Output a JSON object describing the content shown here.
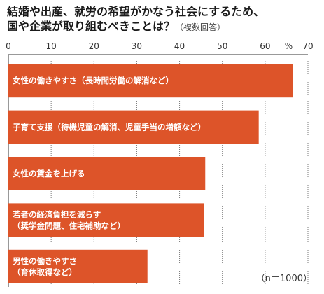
{
  "title_line1": "結婚や出産、就労の希望がかなう社会にするため、",
  "title_line2": "国や企業が取り組むべきことは？",
  "title_note": "（複数回答）",
  "unit": "%",
  "sample_note": "（n＝1000）",
  "chart_data": {
    "type": "bar",
    "orientation": "horizontal",
    "xlim": [
      0,
      70
    ],
    "ticks": [
      0,
      10,
      20,
      30,
      40,
      50,
      60,
      70
    ],
    "grid": true,
    "categories": [
      [
        "女性の働きやすさ（長時間労働の解消など）"
      ],
      [
        "子育て支援（待機児童の解消、児童手当の増額など）"
      ],
      [
        "女性の賃金を上げる"
      ],
      [
        "若者の経済負担を減らす",
        "（奨学金問題、住宅補助など）"
      ],
      [
        "男性の働きやすさ",
        "（育休取得など）"
      ]
    ],
    "values": [
      66.5,
      58.5,
      46.0,
      45.7,
      32.5
    ],
    "color": "#dd5429"
  }
}
